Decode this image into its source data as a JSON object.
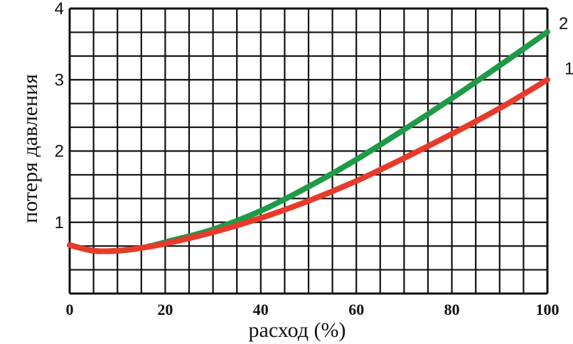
{
  "chart_data": {
    "type": "line",
    "title": "",
    "xlabel": "расход (%)",
    "ylabel": "потеря давления",
    "xlim": [
      0,
      100
    ],
    "ylim": [
      0,
      4
    ],
    "x_ticks": [
      0,
      20,
      40,
      60,
      80,
      100
    ],
    "x_tick_labels": [
      "0",
      "20",
      "40",
      "60",
      "80",
      "100"
    ],
    "y_ticks": [
      1,
      2,
      3,
      4
    ],
    "y_tick_labels": [
      "1",
      "2",
      "3",
      "4"
    ],
    "grid": true,
    "grid_x_divisions": 20,
    "grid_y_divisions": 12,
    "series": [
      {
        "name": "2",
        "color": "#1e9a48",
        "x": [
          0,
          5,
          10,
          15,
          20,
          30,
          40,
          50,
          60,
          70,
          80,
          90,
          100
        ],
        "values": [
          0.68,
          0.6,
          0.6,
          0.64,
          0.72,
          0.9,
          1.16,
          1.5,
          1.88,
          2.3,
          2.74,
          3.2,
          3.67
        ]
      },
      {
        "name": "1",
        "color": "#e83a2a",
        "x": [
          0,
          5,
          10,
          15,
          20,
          30,
          40,
          50,
          60,
          70,
          80,
          90,
          100
        ],
        "values": [
          0.68,
          0.6,
          0.6,
          0.64,
          0.7,
          0.86,
          1.06,
          1.3,
          1.58,
          1.9,
          2.24,
          2.6,
          3.0
        ]
      }
    ]
  }
}
